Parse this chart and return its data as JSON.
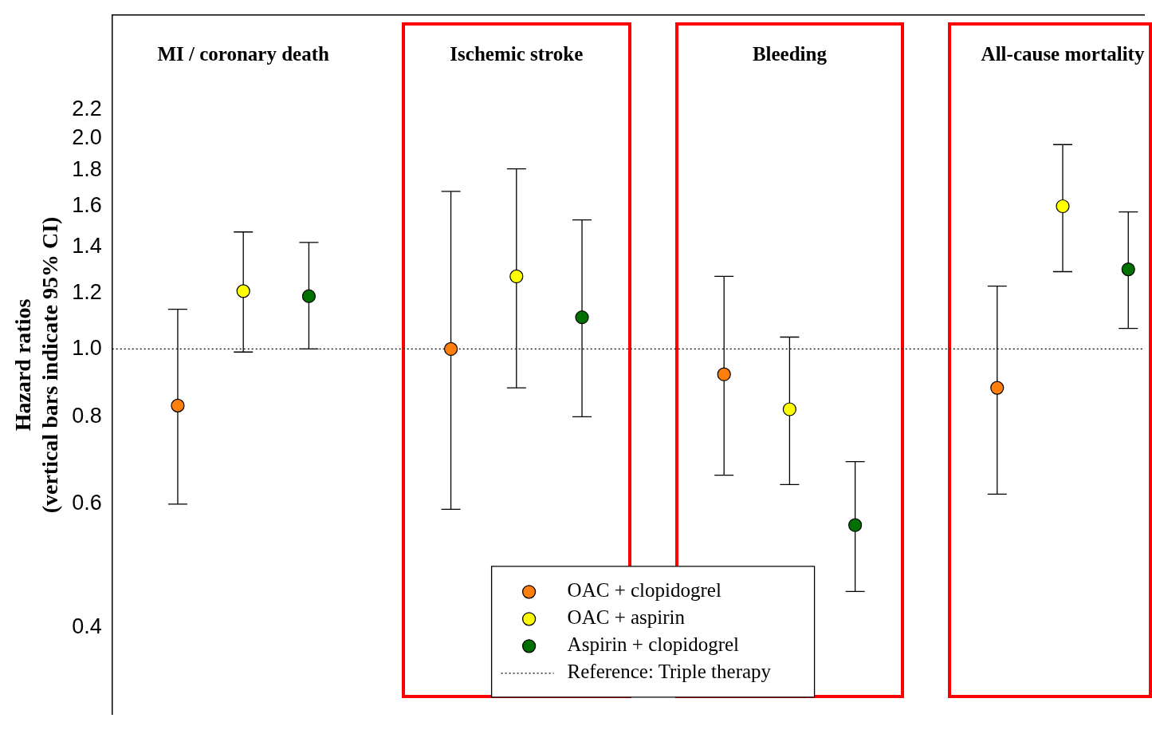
{
  "chart_data": {
    "type": "scatter",
    "ylabel": "Hazard ratios\n(vertical bars indicate 95% CI)",
    "categories": [
      "MI / coronary death",
      "Ischemic stroke",
      "Bleeding",
      "All-cause mortality"
    ],
    "log": "y",
    "ylim": [
      0.3,
      3.0
    ],
    "yticks": [
      0.4,
      0.6,
      0.8,
      {
        "value": 1.0,
        "label": "1.0"
      },
      1.2,
      1.4,
      1.6,
      1.8,
      {
        "value": 2.0,
        "label": "2.0"
      },
      2.2
    ],
    "marker": "circle",
    "legend": "bottom",
    "grid": false,
    "series": [
      {
        "name": "OAC + clopidogrel",
        "color": "#ff7f0e",
        "values": [
          0.83,
          1.0,
          0.92,
          0.88
        ],
        "errors": [
          [
            0.6,
            1.14
          ],
          [
            0.59,
            1.68
          ],
          [
            0.66,
            1.27
          ],
          [
            0.62,
            1.23
          ]
        ]
      },
      {
        "name": "OAC + aspirin",
        "color": "#ffff00",
        "values": [
          1.21,
          1.27,
          0.82,
          1.6
        ],
        "errors": [
          [
            0.99,
            1.47
          ],
          [
            0.88,
            1.81
          ],
          [
            0.64,
            1.04
          ],
          [
            1.29,
            1.96
          ]
        ]
      },
      {
        "name": "Aspirin + clopidogrel",
        "color": "#007000",
        "values": [
          1.19,
          1.11,
          0.56,
          1.3
        ],
        "errors": [
          [
            1.0,
            1.42
          ],
          [
            0.8,
            1.53
          ],
          [
            0.45,
            0.69
          ],
          [
            1.07,
            1.57
          ]
        ]
      }
    ],
    "ref_lines": [
      {
        "axis": "y",
        "value": 1.0,
        "label": "Reference: Triple therapy",
        "line_style": "dotted",
        "color": "#000000"
      }
    ]
  }
}
